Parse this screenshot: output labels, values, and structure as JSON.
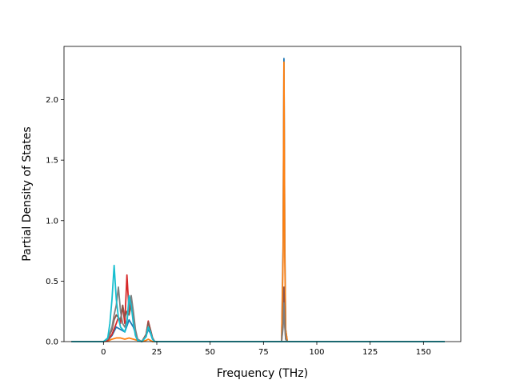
{
  "chart_data": {
    "type": "line",
    "title": "",
    "xlabel": "Frequency (THz)",
    "ylabel": "Partial Density of States",
    "xlim": [
      -18.5,
      167.5
    ],
    "ylim": [
      0,
      2.44
    ],
    "xticks": [
      0,
      25,
      50,
      75,
      100,
      125,
      150
    ],
    "yticks": [
      0.0,
      0.5,
      1.0,
      1.5,
      2.0
    ],
    "ytick_labels": [
      "0.0",
      "0.5",
      "1.0",
      "1.5",
      "2.0"
    ],
    "grid": false,
    "legend": "none",
    "series": [
      {
        "color": "#1f77b4",
        "x": [
          -15,
          0,
          2,
          4,
          6,
          8,
          10,
          12,
          14,
          16,
          18,
          20,
          21,
          22,
          23,
          24,
          26,
          80,
          83.5,
          84.2,
          84.6,
          85.0,
          85.4,
          86.2,
          88,
          160
        ],
        "y": [
          0,
          0,
          0.01,
          0.05,
          0.12,
          0.1,
          0.08,
          0.18,
          0.12,
          0.02,
          0,
          0.05,
          0.1,
          0.07,
          0.02,
          0,
          0,
          0,
          0,
          0.8,
          2.34,
          0.8,
          0.1,
          0,
          0,
          0
        ]
      },
      {
        "color": "#ff7f0e",
        "x": [
          -15,
          0,
          2,
          4,
          6,
          8,
          10,
          12,
          14,
          16,
          18,
          20,
          21,
          22,
          23,
          24,
          26,
          80,
          83.5,
          84.2,
          84.6,
          85.0,
          85.4,
          86.2,
          88,
          160
        ],
        "y": [
          0,
          0,
          0.005,
          0.02,
          0.03,
          0.03,
          0.02,
          0.03,
          0.02,
          0.01,
          0,
          0.01,
          0.02,
          0.01,
          0,
          0,
          0,
          0,
          0,
          0.7,
          2.31,
          0.7,
          0.1,
          0,
          0,
          0
        ]
      },
      {
        "color": "#d62728",
        "x": [
          -15,
          0,
          2,
          4,
          6,
          7,
          8,
          9,
          10,
          11,
          12,
          13,
          14,
          15,
          16,
          18,
          20,
          21,
          22,
          23,
          24,
          26,
          160
        ],
        "y": [
          0,
          0,
          0.01,
          0.06,
          0.15,
          0.2,
          0.15,
          0.3,
          0.15,
          0.55,
          0.25,
          0.35,
          0.2,
          0.05,
          0.01,
          0,
          0.06,
          0.17,
          0.1,
          0.03,
          0,
          0,
          0
        ]
      },
      {
        "color": "#8c564b",
        "x": [
          -15,
          0,
          2,
          4,
          5,
          6,
          7,
          8,
          9,
          10,
          11,
          12,
          13,
          14,
          15,
          16,
          18,
          20,
          21,
          22,
          23,
          24,
          26,
          80,
          83.5,
          84.2,
          84.6,
          85.0,
          85.4,
          86.2,
          88,
          160
        ],
        "y": [
          0,
          0,
          0.02,
          0.1,
          0.18,
          0.22,
          0.2,
          0.18,
          0.3,
          0.2,
          0.25,
          0.22,
          0.3,
          0.2,
          0.08,
          0.01,
          0,
          0.06,
          0.16,
          0.1,
          0.03,
          0,
          0,
          0,
          0,
          0.15,
          0.45,
          0.15,
          0.02,
          0,
          0,
          0
        ]
      },
      {
        "color": "#7f7f7f",
        "x": [
          -15,
          0,
          2,
          4,
          5,
          6,
          7,
          8,
          9,
          10,
          11,
          12,
          13,
          14,
          15,
          16,
          18,
          20,
          21,
          22,
          23,
          24,
          26,
          80,
          83.5,
          84.2,
          84.6,
          85.0,
          85.4,
          86.2,
          88,
          160
        ],
        "y": [
          0,
          0,
          0.02,
          0.12,
          0.22,
          0.3,
          0.45,
          0.25,
          0.15,
          0.12,
          0.18,
          0.3,
          0.38,
          0.25,
          0.1,
          0.02,
          0,
          0.05,
          0.12,
          0.08,
          0.02,
          0,
          0,
          0,
          0,
          0.12,
          0.32,
          0.12,
          0.02,
          0,
          0,
          0
        ]
      },
      {
        "color": "#17becf",
        "x": [
          -15,
          0,
          2,
          3,
          4,
          5,
          6,
          7,
          8,
          9,
          10,
          11,
          12,
          13,
          14,
          15,
          16,
          18,
          20,
          21,
          22,
          23,
          24,
          26,
          160
        ],
        "y": [
          0,
          0,
          0.03,
          0.15,
          0.35,
          0.63,
          0.35,
          0.2,
          0.12,
          0.1,
          0.08,
          0.15,
          0.38,
          0.3,
          0.15,
          0.05,
          0.01,
          0,
          0.04,
          0.12,
          0.08,
          0.02,
          0,
          0,
          0
        ]
      }
    ]
  }
}
